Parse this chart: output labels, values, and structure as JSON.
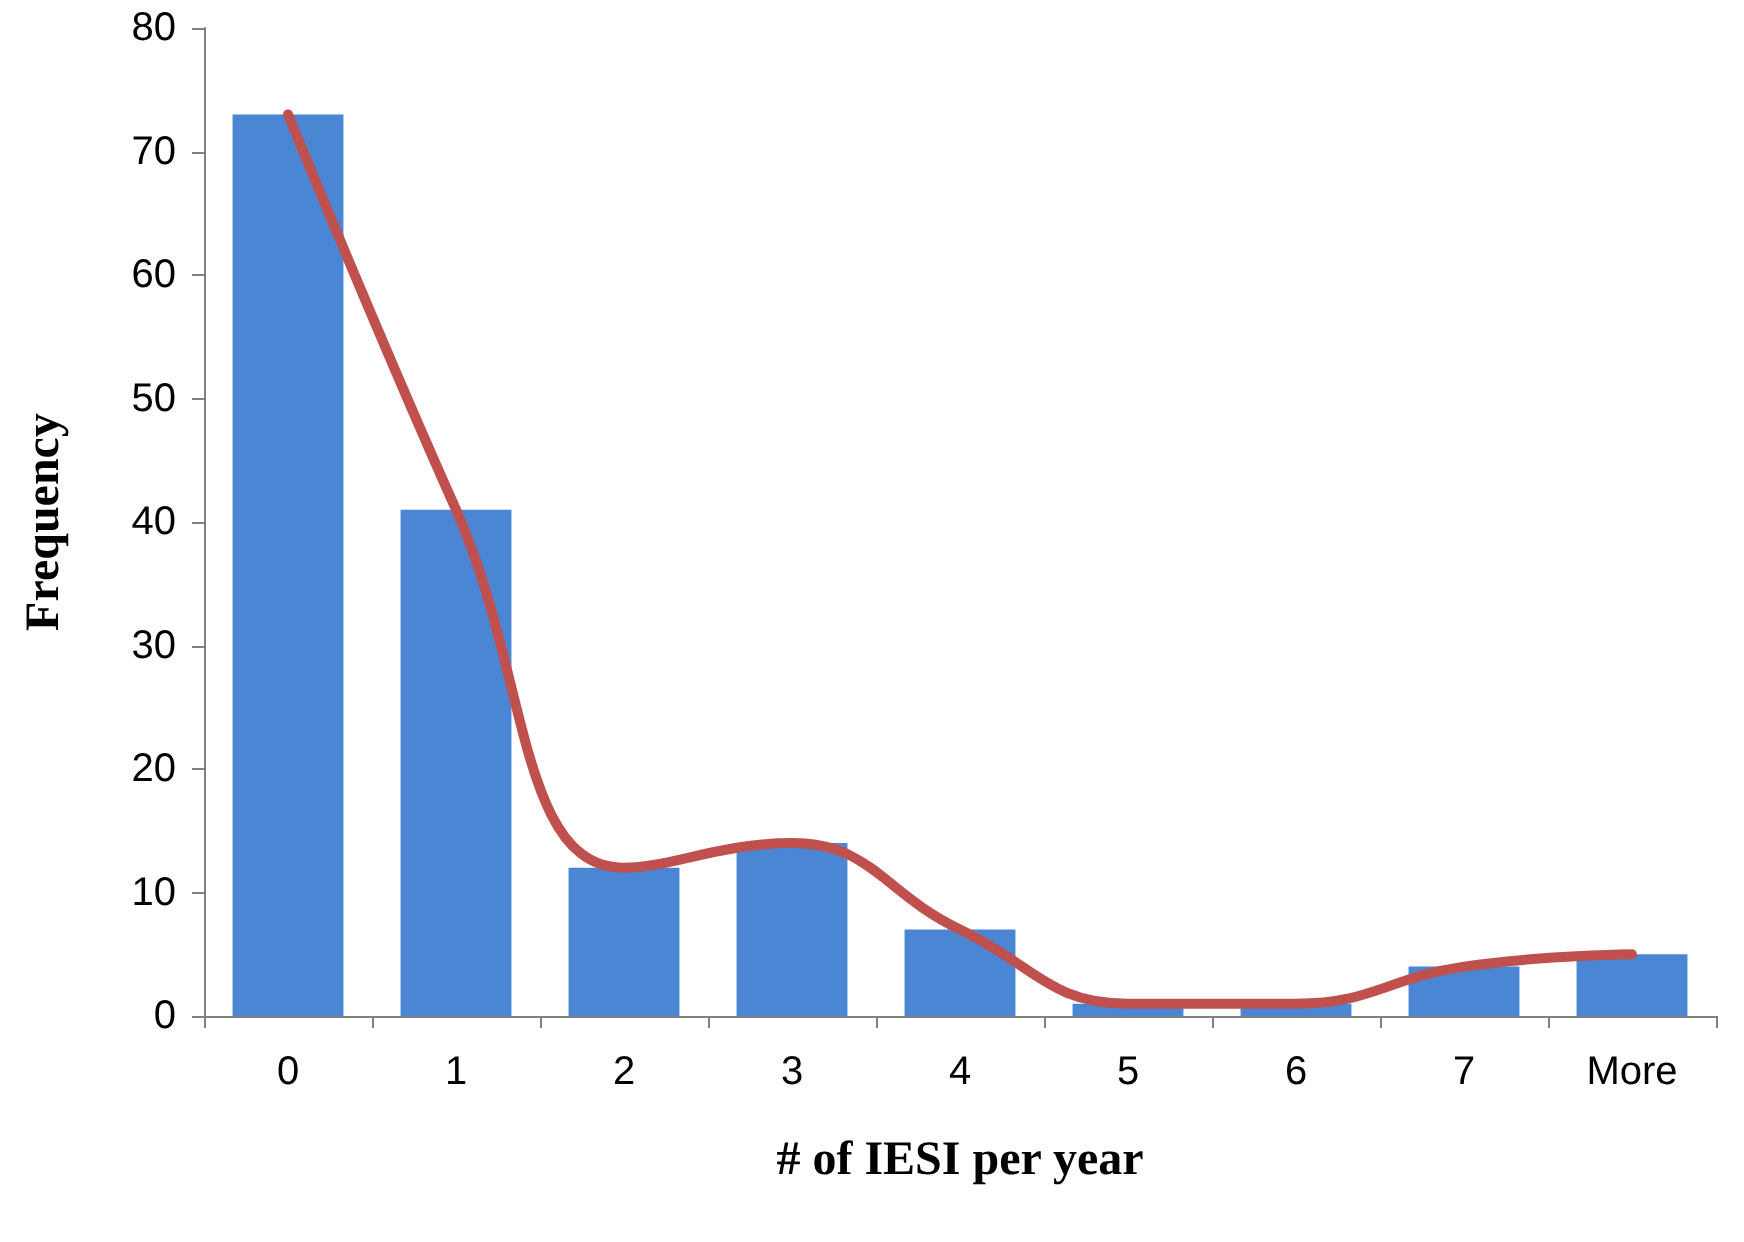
{
  "chart_data": {
    "type": "bar",
    "xlabel": "# of IESI per year",
    "ylabel": "Frequency",
    "categories": [
      "0",
      "1",
      "2",
      "3",
      "4",
      "5",
      "6",
      "7",
      "More"
    ],
    "series": [
      {
        "color": "#4a86d4",
        "values": [
          73,
          41,
          12,
          14,
          7,
          1,
          1,
          4,
          5
        ]
      },
      {
        "type": "line",
        "color": "#c0504d",
        "values": [
          73,
          41,
          12,
          14,
          7,
          1,
          1,
          4,
          5
        ],
        "marker": "none",
        "line_style": "solid"
      }
    ],
    "ylim": [
      0,
      80
    ],
    "yticks": [
      0,
      10,
      20,
      30,
      40,
      50,
      60,
      70,
      80
    ],
    "grid": false
  }
}
